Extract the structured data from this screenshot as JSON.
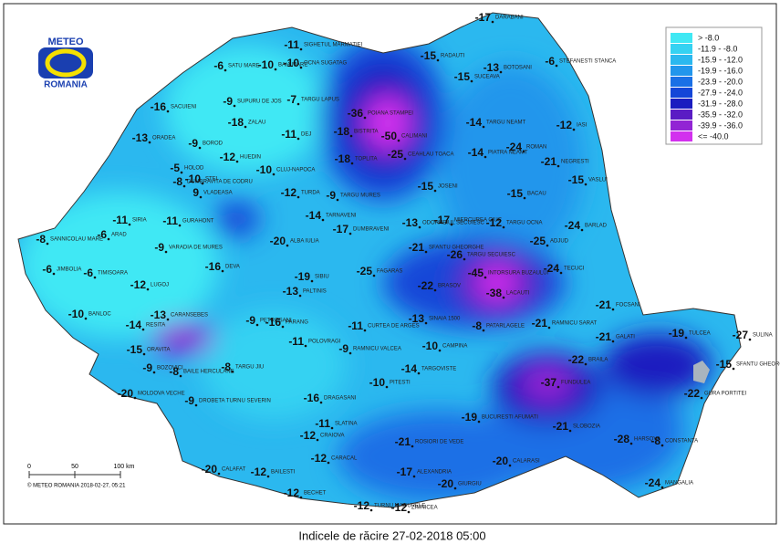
{
  "logo": {
    "top": "METEO",
    "bottom": "ROMANIA"
  },
  "title": "Indicele de răcire 27-02-2018 05:00",
  "credit": "© METEO ROMANIA 2018-02-27, 05:21",
  "scale": [
    "0",
    "50",
    "100 km"
  ],
  "legend": [
    {
      "label": "> -8.0",
      "color": "#40e8f4"
    },
    {
      "label": "-11.9 - -8.0",
      "color": "#35d2f2"
    },
    {
      "label": "-15.9 - -12.0",
      "color": "#2bb8ef"
    },
    {
      "label": "-19.9 - -16.0",
      "color": "#2296ec"
    },
    {
      "label": "-23.9 - -20.0",
      "color": "#1a70e6"
    },
    {
      "label": "-27.9 - -24.0",
      "color": "#1446d8"
    },
    {
      "label": "-31.9 - -28.0",
      "color": "#1a1cc0"
    },
    {
      "label": "-35.9 - -32.0",
      "color": "#5a1cc4"
    },
    {
      "label": "-39.9 - -36.0",
      "color": "#9224d4"
    },
    {
      "label": "<= -40.0",
      "color": "#d230ee"
    }
  ],
  "stations": [
    {
      "name": "DARABANI",
      "value": -17
    },
    {
      "name": "STEFANESTI STANCA",
      "value": -6
    },
    {
      "name": "RADAUTI",
      "value": -15
    },
    {
      "name": "BOTOSANI",
      "value": -13
    },
    {
      "name": "SUCEAVA",
      "value": -15
    },
    {
      "name": "SIGHETUL MARMATIEI",
      "value": -11
    },
    {
      "name": "OCNA SUGATAG",
      "value": -10
    },
    {
      "name": "SATU MARE",
      "value": -6
    },
    {
      "name": "BAIA MARE",
      "value": -10
    },
    {
      "name": "TARGU LAPUS",
      "value": -7
    },
    {
      "name": "SACUIENI",
      "value": -16
    },
    {
      "name": "SUPURU DE JOS",
      "value": -9
    },
    {
      "name": "ZALAU",
      "value": -18
    },
    {
      "name": "ORADEA",
      "value": -13
    },
    {
      "name": "BOROD",
      "value": -9
    },
    {
      "name": "DEJ",
      "value": -11
    },
    {
      "name": "BISTRITA",
      "value": -18
    },
    {
      "name": "HUEDIN",
      "value": -12
    },
    {
      "name": "HOLOD",
      "value": -5
    },
    {
      "name": "DUMBRAVITA DE CODRU",
      "value": -8
    },
    {
      "name": "STEI",
      "value": -10
    },
    {
      "name": "VLADEASA",
      "value": 9
    },
    {
      "name": "CLUJ-NAPOCA",
      "value": -10
    },
    {
      "name": "TARGU MURES",
      "value": -9
    },
    {
      "name": "TURDA",
      "value": -12
    },
    {
      "name": "TOPLITA",
      "value": -18
    },
    {
      "name": "POIANA STAMPEI",
      "value": -36
    },
    {
      "name": "CALIMANI",
      "value": -50
    },
    {
      "name": "CEAHLAU TOACA",
      "value": -25
    },
    {
      "name": "JOSENI",
      "value": -15
    },
    {
      "name": "TARGU NEAMT",
      "value": -14
    },
    {
      "name": "PIATRA NEAMT",
      "value": -14
    },
    {
      "name": "ROMAN",
      "value": -24
    },
    {
      "name": "IASI",
      "value": -12
    },
    {
      "name": "NEGRESTI",
      "value": -21
    },
    {
      "name": "VASLUI",
      "value": -15
    },
    {
      "name": "BACAU",
      "value": -15
    },
    {
      "name": "SIRIA",
      "value": -11
    },
    {
      "name": "GURAHONT",
      "value": -11
    },
    {
      "name": "ARAD",
      "value": -6
    },
    {
      "name": "SANNICOLAU MARE",
      "value": -8
    },
    {
      "name": "JIMBOLIA",
      "value": -6
    },
    {
      "name": "TIMISOARA",
      "value": -6
    },
    {
      "name": "VARADIA DE MURES",
      "value": -9
    },
    {
      "name": "DEVA",
      "value": -16
    },
    {
      "name": "LUGOJ",
      "value": -12
    },
    {
      "name": "BANLOC",
      "value": -10
    },
    {
      "name": "ALBA IULIA",
      "value": -20
    },
    {
      "name": "TARNAVENI",
      "value": -14
    },
    {
      "name": "DUMBRAVENI",
      "value": -17
    },
    {
      "name": "MIERCUREA CIUC",
      "value": -17
    },
    {
      "name": "ODORHEIUL SECUIESC",
      "value": -13
    },
    {
      "name": "TARGU OCNA",
      "value": -12
    },
    {
      "name": "BARLAD",
      "value": -24
    },
    {
      "name": "ADJUD",
      "value": -25
    },
    {
      "name": "SFANTU GHEORGHE",
      "value": -21
    },
    {
      "name": "TARGU SECUIESC",
      "value": -26
    },
    {
      "name": "INTORSURA BUZAULUI",
      "value": -45
    },
    {
      "name": "LACAUTI",
      "value": -38
    },
    {
      "name": "TECUCI",
      "value": -24
    },
    {
      "name": "FOCSANI",
      "value": -21
    },
    {
      "name": "SIBIU",
      "value": -19
    },
    {
      "name": "PALTINIS",
      "value": -13
    },
    {
      "name": "FAGARAS",
      "value": -25
    },
    {
      "name": "BRASOV",
      "value": -22
    },
    {
      "name": "RESITA",
      "value": -14
    },
    {
      "name": "CARANSEBES",
      "value": -13
    },
    {
      "name": "ORAVITA",
      "value": -15
    },
    {
      "name": "BOZOVICI",
      "value": -9
    },
    {
      "name": "BAILE HERCULANE",
      "value": -8
    },
    {
      "name": "MOLDOVA VECHE",
      "value": -20
    },
    {
      "name": "DROBETA TURNU SEVERIN",
      "value": -9
    },
    {
      "name": "PETROSANI",
      "value": -9
    },
    {
      "name": "PARANG",
      "value": -16
    },
    {
      "name": "TARGU JIU",
      "value": -8
    },
    {
      "name": "POLOVRAGI",
      "value": -11
    },
    {
      "name": "RAMNICU VALCEA",
      "value": -9
    },
    {
      "name": "CURTEA DE ARGES",
      "value": -11
    },
    {
      "name": "SINAIA 1500",
      "value": -13
    },
    {
      "name": "CAMPINA",
      "value": -10
    },
    {
      "name": "PATARLAGELE",
      "value": -8
    },
    {
      "name": "RAMNICU SARAT",
      "value": -21
    },
    {
      "name": "GALATI",
      "value": -21
    },
    {
      "name": "BRAILA",
      "value": -22
    },
    {
      "name": "TULCEA",
      "value": -19
    },
    {
      "name": "SULINA",
      "value": -27
    },
    {
      "name": "SFANTU GHEORGHE DELTA",
      "value": -15
    },
    {
      "name": "GURA PORTITEI",
      "value": -22
    },
    {
      "name": "FUNDULEA",
      "value": -37
    },
    {
      "name": "TARGOVISTE",
      "value": -14
    },
    {
      "name": "PITESTI",
      "value": -10
    },
    {
      "name": "DRAGASANI",
      "value": -16
    },
    {
      "name": "SLATINA",
      "value": -11
    },
    {
      "name": "CRAIOVA",
      "value": -12
    },
    {
      "name": "CARACAL",
      "value": -12
    },
    {
      "name": "BAILESTI",
      "value": -12
    },
    {
      "name": "CALAFAT",
      "value": -20
    },
    {
      "name": "BECHET",
      "value": -12
    },
    {
      "name": "ROSIORI DE VEDE",
      "value": -21
    },
    {
      "name": "ALEXANDRIA",
      "value": -17
    },
    {
      "name": "TURNU MAGURELE",
      "value": -12
    },
    {
      "name": "ZIMNICEA",
      "value": -12
    },
    {
      "name": "GIURGIU",
      "value": -20
    },
    {
      "name": "BUCURESTI AFUMATI",
      "value": -19
    },
    {
      "name": "CALARASI",
      "value": -20
    },
    {
      "name": "SLOBOZIA",
      "value": -21
    },
    {
      "name": "HARSOVA",
      "value": -28
    },
    {
      "name": "CONSTANTA",
      "value": -8
    },
    {
      "name": "MANGALIA",
      "value": -24
    }
  ]
}
